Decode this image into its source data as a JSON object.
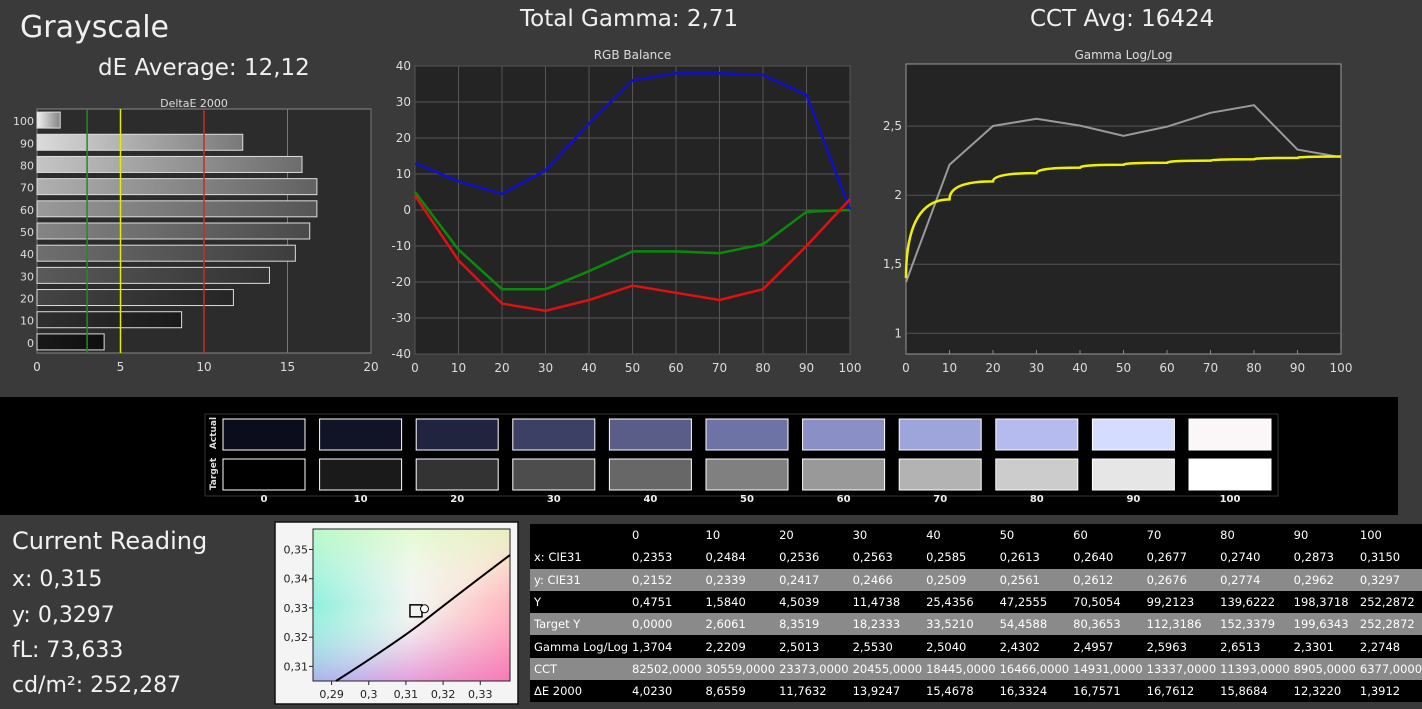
{
  "header": {
    "title": "Grayscale",
    "de_average": "dE Average: 12,12",
    "total_gamma": "Total Gamma: 2,71",
    "cct_avg": "CCT Avg: 16424"
  },
  "chart_data": [
    {
      "type": "bar",
      "orientation": "horizontal",
      "title": "DeltaE 2000",
      "categories": [
        "100",
        "90",
        "80",
        "70",
        "60",
        "50",
        "40",
        "30",
        "20",
        "10",
        "0"
      ],
      "values": [
        1.39,
        12.32,
        15.87,
        16.76,
        16.76,
        16.33,
        15.47,
        13.92,
        11.76,
        8.66,
        4.02
      ],
      "xlim": [
        0,
        20
      ],
      "xticks": [
        "0",
        "5",
        "10",
        "15",
        "20"
      ],
      "reference_lines": [
        {
          "x": 3,
          "color": "#1f8f1f"
        },
        {
          "x": 5,
          "color": "#e8e800"
        },
        {
          "x": 10,
          "color": "#c0302a"
        }
      ],
      "grid": true
    },
    {
      "type": "line",
      "title": "RGB Balance",
      "x": [
        0,
        10,
        20,
        30,
        40,
        50,
        60,
        70,
        80,
        90,
        100
      ],
      "ylim": [
        -40,
        40
      ],
      "yticks": [
        "40",
        "30",
        "20",
        "10",
        "0",
        "-10",
        "-20",
        "-30",
        "-40"
      ],
      "xticks": [
        "0",
        "10",
        "20",
        "30",
        "40",
        "50",
        "60",
        "70",
        "80",
        "90",
        "100"
      ],
      "series": [
        {
          "color": "#1010c8",
          "values": [
            13,
            8,
            4.5,
            11,
            24,
            36,
            38,
            38,
            37.5,
            32,
            0
          ]
        },
        {
          "color": "#0a8a0a",
          "values": [
            5,
            -11,
            -22,
            -22,
            -17,
            -11.5,
            -11.5,
            -12,
            -9.5,
            -0.5,
            0
          ]
        },
        {
          "color": "#e01010",
          "values": [
            4,
            -14,
            -26,
            -28,
            -25,
            -21,
            -23,
            -25,
            -22,
            -10,
            3
          ]
        }
      ],
      "grid": true
    },
    {
      "type": "line",
      "title": "Gamma Log/Log",
      "x": [
        0,
        10,
        20,
        30,
        40,
        50,
        60,
        70,
        80,
        90,
        100
      ],
      "ylim": [
        0.85,
        2.95
      ],
      "yticks": [
        "2,5",
        "2",
        "1,5",
        "1"
      ],
      "ytick_values": [
        2.5,
        2,
        1.5,
        1
      ],
      "xticks": [
        "0",
        "10",
        "20",
        "30",
        "40",
        "50",
        "60",
        "70",
        "80",
        "90",
        "100"
      ],
      "series": [
        {
          "color": "#9a9a9a",
          "values": [
            1.3704,
            2.2209,
            2.5013,
            2.553,
            2.504,
            2.4302,
            2.4957,
            2.5963,
            2.6513,
            2.3301,
            2.2748
          ]
        },
        {
          "color": "#f0f000",
          "values": [
            1.4,
            1.97,
            2.1,
            2.16,
            2.2,
            2.22,
            2.235,
            2.25,
            2.26,
            2.27,
            2.28
          ]
        }
      ],
      "grid": true
    },
    {
      "type": "scatter",
      "xlim": [
        0.285,
        0.338
      ],
      "ylim": [
        0.305,
        0.357
      ],
      "xticks": [
        "0,29",
        "0,3",
        "0,31",
        "0,32",
        "0,33"
      ],
      "xtick_values": [
        0.29,
        0.3,
        0.31,
        0.32,
        0.33
      ],
      "yticks": [
        "0,35",
        "0,34",
        "0,33",
        "0,32",
        "0,31"
      ],
      "ytick_values": [
        0.35,
        0.34,
        0.33,
        0.32,
        0.31
      ],
      "target_point": {
        "x": 0.3127,
        "y": 0.329
      },
      "measured_point": {
        "x": 0.315,
        "y": 0.3297
      }
    }
  ],
  "swatches": {
    "actual_label": "Actual",
    "target_label": "Target",
    "labels": [
      "0",
      "10",
      "20",
      "30",
      "40",
      "50",
      "60",
      "70",
      "80",
      "90",
      "100"
    ],
    "actual_colors": [
      "#0c0d1c",
      "#111427",
      "#21243e",
      "#3c4064",
      "#595d88",
      "#6e73a6",
      "#8a8fc5",
      "#9ea5da",
      "#b5bbef",
      "#d4dcff",
      "#fbf7f8"
    ],
    "target_colors": [
      "#000000",
      "#1a1a1a",
      "#333333",
      "#4d4d4d",
      "#676767",
      "#808080",
      "#999999",
      "#b3b3b3",
      "#cccccc",
      "#e6e6e6",
      "#ffffff"
    ]
  },
  "current_reading": {
    "title": "Current Reading",
    "x": "x: 0,315",
    "y": "y: 0,3297",
    "fl": "fL: 73,633",
    "cdm2": "cd/m²: 252,287"
  },
  "table": {
    "columns": [
      "",
      "0",
      "10",
      "20",
      "30",
      "40",
      "50",
      "60",
      "70",
      "80",
      "90",
      "100"
    ],
    "rows": [
      [
        "x: CIE31",
        "0,2353",
        "0,2484",
        "0,2536",
        "0,2563",
        "0,2585",
        "0,2613",
        "0,2640",
        "0,2677",
        "0,2740",
        "0,2873",
        "0,3150"
      ],
      [
        "y: CIE31",
        "0,2152",
        "0,2339",
        "0,2417",
        "0,2466",
        "0,2509",
        "0,2561",
        "0,2612",
        "0,2676",
        "0,2774",
        "0,2962",
        "0,3297"
      ],
      [
        "Y",
        "0,4751",
        "1,5840",
        "4,5039",
        "11,4738",
        "25,4356",
        "47,2555",
        "70,5054",
        "99,2123",
        "139,6222",
        "198,3718",
        "252,2872"
      ],
      [
        "Target Y",
        "0,0000",
        "2,6061",
        "8,3519",
        "18,2333",
        "33,5210",
        "54,4588",
        "80,3653",
        "112,3186",
        "152,3379",
        "199,6343",
        "252,2872"
      ],
      [
        "Gamma Log/Log",
        "1,3704",
        "2,2209",
        "2,5013",
        "2,5530",
        "2,5040",
        "2,4302",
        "2,4957",
        "2,5963",
        "2,6513",
        "2,3301",
        "2,2748"
      ],
      [
        "CCT",
        "82502,0000",
        "30559,0000",
        "23373,0000",
        "20455,0000",
        "18445,0000",
        "16466,0000",
        "14931,0000",
        "13337,0000",
        "11393,0000",
        "8905,0000",
        "6377,0000"
      ],
      [
        "ΔE 2000",
        "4,0230",
        "8,6559",
        "11,7632",
        "13,9247",
        "15,4678",
        "16,3324",
        "16,7571",
        "16,7612",
        "15,8684",
        "12,3220",
        "1,3912"
      ]
    ]
  }
}
